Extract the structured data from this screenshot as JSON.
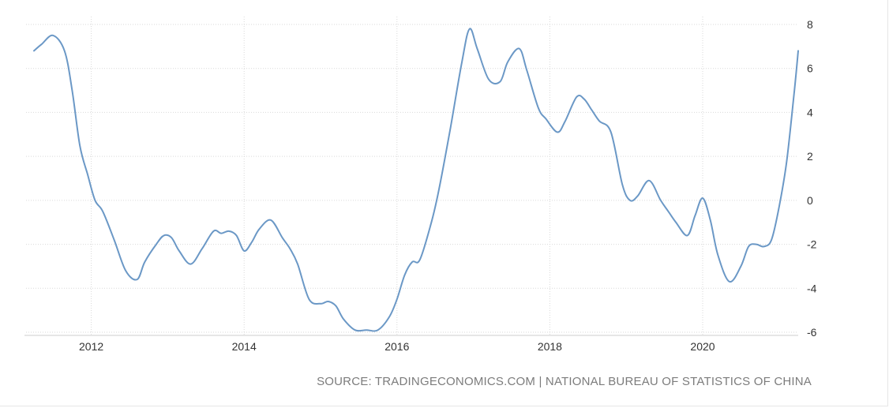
{
  "chart_data": {
    "type": "line",
    "title": "",
    "xlabel": "",
    "ylabel": "",
    "xlim": [
      2011.25,
      2021.25
    ],
    "ylim": [
      -6,
      8
    ],
    "x_ticks": [
      "2012",
      "2014",
      "2016",
      "2018",
      "2020"
    ],
    "y_ticks": [
      "8",
      "6",
      "4",
      "2",
      "0",
      "-2",
      "-4",
      "-6"
    ],
    "grid": true,
    "line_color": "#6b98c6",
    "series": [
      {
        "name": "",
        "x": [
          2011.25,
          2011.35,
          2011.5,
          2011.65,
          2011.75,
          2011.85,
          2011.95,
          2012.05,
          2012.15,
          2012.3,
          2012.45,
          2012.6,
          2012.7,
          2012.85,
          2012.95,
          2013.05,
          2013.15,
          2013.3,
          2013.45,
          2013.6,
          2013.7,
          2013.8,
          2013.9,
          2014.0,
          2014.1,
          2014.2,
          2014.35,
          2014.5,
          2014.6,
          2014.7,
          2014.85,
          2015.0,
          2015.1,
          2015.2,
          2015.3,
          2015.45,
          2015.6,
          2015.75,
          2015.9,
          2016.0,
          2016.1,
          2016.2,
          2016.3,
          2016.45,
          2016.55,
          2016.7,
          2016.85,
          2016.95,
          2017.05,
          2017.2,
          2017.35,
          2017.45,
          2017.6,
          2017.7,
          2017.85,
          2017.95,
          2018.1,
          2018.2,
          2018.35,
          2018.45,
          2018.55,
          2018.65,
          2018.8,
          2018.95,
          2019.05,
          2019.15,
          2019.3,
          2019.45,
          2019.55,
          2019.65,
          2019.8,
          2019.9,
          2020.0,
          2020.1,
          2020.2,
          2020.35,
          2020.5,
          2020.6,
          2020.7,
          2020.8,
          2020.9,
          2021.0,
          2021.1,
          2021.2,
          2021.25
        ],
        "values": [
          6.8,
          7.1,
          7.5,
          6.8,
          5.0,
          2.5,
          1.2,
          0.0,
          -0.5,
          -1.8,
          -3.2,
          -3.6,
          -2.8,
          -2.0,
          -1.6,
          -1.7,
          -2.3,
          -2.9,
          -2.2,
          -1.4,
          -1.5,
          -1.4,
          -1.6,
          -2.3,
          -1.9,
          -1.3,
          -0.9,
          -1.7,
          -2.2,
          -2.9,
          -4.5,
          -4.7,
          -4.6,
          -4.8,
          -5.4,
          -5.9,
          -5.9,
          -5.9,
          -5.3,
          -4.5,
          -3.4,
          -2.8,
          -2.7,
          -1.0,
          0.5,
          3.3,
          6.3,
          7.8,
          6.9,
          5.5,
          5.4,
          6.3,
          6.9,
          5.9,
          4.2,
          3.7,
          3.1,
          3.6,
          4.7,
          4.6,
          4.1,
          3.6,
          3.1,
          0.7,
          0.0,
          0.2,
          0.9,
          0.0,
          -0.5,
          -1.0,
          -1.6,
          -0.7,
          0.1,
          -0.9,
          -2.5,
          -3.7,
          -3.0,
          -2.1,
          -2.0,
          -2.1,
          -1.8,
          -0.3,
          1.8,
          5.0,
          6.8
        ]
      }
    ]
  },
  "footer": {
    "source_text": "SOURCE: TRADINGECONOMICS.COM | NATIONAL BUREAU OF STATISTICS OF CHINA"
  }
}
